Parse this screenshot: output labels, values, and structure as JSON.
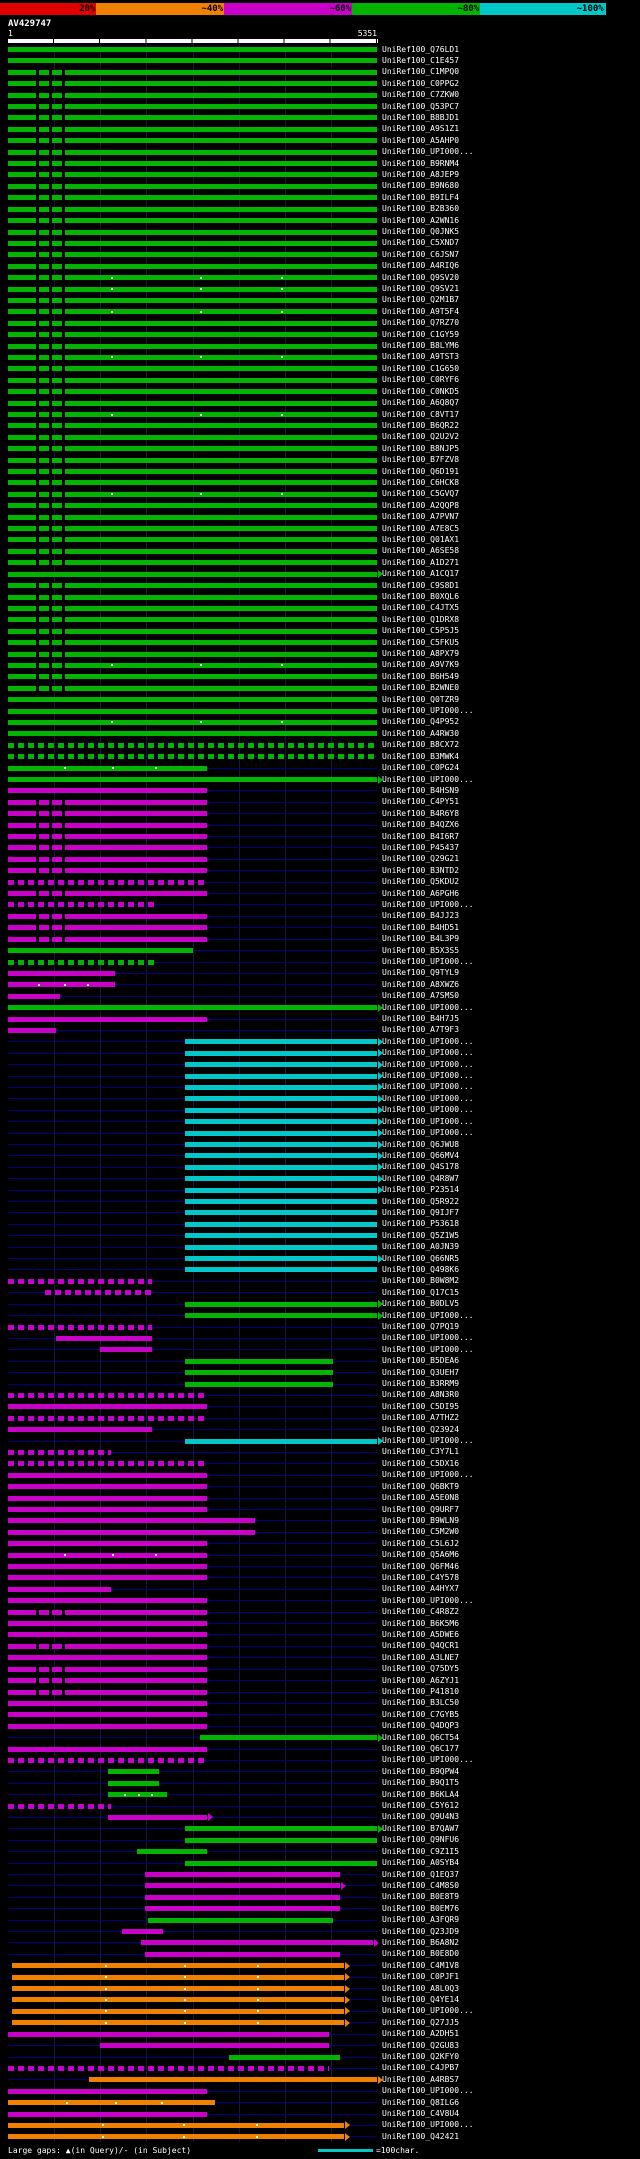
{
  "legend": {
    "gaps_text": "Large gaps: ▲(in Query)/- (in Subject)",
    "scale_marker_text": "=100char.",
    "scale_marker_color": "#00c8c8"
  },
  "chart_data": {
    "type": "bar",
    "orientation": "horizontal",
    "description": "BLAST-style alignment overview: each horizontal bar is one subject hit aligned to the query, colored by percent identity",
    "query_id": "AV429747",
    "x_range": [
      1,
      5351
    ],
    "ruler_start": "1",
    "ruler_end": "5351",
    "grid_divisions": 8,
    "scale": [
      {
        "label": "20%",
        "color": "#e00000"
      },
      {
        "label": "~40%",
        "color": "#f08000"
      },
      {
        "label": "~60%",
        "color": "#c800c8"
      },
      {
        "label": "~80%",
        "color": "#00b400"
      },
      {
        "label": "~100%",
        "color": "#00c8c8"
      }
    ],
    "colors": {
      "g": "#00b400",
      "m": "#c800c8",
      "c": "#00c8c8",
      "o": "#f08000",
      "r": "#e00000",
      "baseline": "#000082"
    },
    "row_format": "[hit_label, color_key, start_pct_of_query, end_pct_of_query, flags(a=arrow,d=dashed,t=white_gap_dots,x=black_gap_notches)]",
    "rows": [
      [
        "UniRef100_Q76LD1",
        "g",
        0,
        100,
        ""
      ],
      [
        "UniRef100_C1E457",
        "g",
        0,
        100,
        ""
      ],
      [
        "UniRef100_C1MPQ0",
        "g",
        0,
        100,
        "x"
      ],
      [
        "UniRef100_C0PPG2",
        "g",
        0,
        100,
        "x"
      ],
      [
        "UniRef100_C7ZKW0",
        "g",
        0,
        100,
        "x"
      ],
      [
        "UniRef100_Q53PC7",
        "g",
        0,
        100,
        "x"
      ],
      [
        "UniRef100_B8BJD1",
        "g",
        0,
        100,
        "x"
      ],
      [
        "UniRef100_A9S1Z1",
        "g",
        0,
        100,
        "x"
      ],
      [
        "UniRef100_A5AHP0",
        "g",
        0,
        100,
        "x"
      ],
      [
        "UniRef100_UPI000...",
        "g",
        0,
        100,
        "x"
      ],
      [
        "UniRef100_B9RNM4",
        "g",
        0,
        100,
        "x"
      ],
      [
        "UniRef100_A8JEP9",
        "g",
        0,
        100,
        "x"
      ],
      [
        "UniRef100_B9N680",
        "g",
        0,
        100,
        "x"
      ],
      [
        "UniRef100_B9ILF4",
        "g",
        0,
        100,
        "x"
      ],
      [
        "UniRef100_B2B360",
        "g",
        0,
        100,
        "x"
      ],
      [
        "UniRef100_A2WN16",
        "g",
        0,
        100,
        "x"
      ],
      [
        "UniRef100_Q0JNK5",
        "g",
        0,
        100,
        "x"
      ],
      [
        "UniRef100_C5XND7",
        "g",
        0,
        100,
        "x"
      ],
      [
        "UniRef100_C6JSN7",
        "g",
        0,
        100,
        "x"
      ],
      [
        "UniRef100_A4RIQ6",
        "g",
        0,
        100,
        "x"
      ],
      [
        "UniRef100_Q9SV20",
        "g",
        0,
        100,
        "xt"
      ],
      [
        "UniRef100_Q9SV21",
        "g",
        0,
        100,
        "xt"
      ],
      [
        "UniRef100_Q2M1B7",
        "g",
        0,
        100,
        "x"
      ],
      [
        "UniRef100_A9T5F4",
        "g",
        0,
        100,
        "xt"
      ],
      [
        "UniRef100_Q7RZ70",
        "g",
        0,
        100,
        "x"
      ],
      [
        "UniRef100_C1GY59",
        "g",
        0,
        100,
        "x"
      ],
      [
        "UniRef100_B8LYM6",
        "g",
        0,
        100,
        "x"
      ],
      [
        "UniRef100_A9TST3",
        "g",
        0,
        100,
        "xt"
      ],
      [
        "UniRef100_C1G650",
        "g",
        0,
        100,
        "x"
      ],
      [
        "UniRef100_C0RYF6",
        "g",
        0,
        100,
        "x"
      ],
      [
        "UniRef100_C0NKD5",
        "g",
        0,
        100,
        "x"
      ],
      [
        "UniRef100_A6Q8Q7",
        "g",
        0,
        100,
        "x"
      ],
      [
        "UniRef100_C8VT17",
        "g",
        0,
        100,
        "xt"
      ],
      [
        "UniRef100_B6QR22",
        "g",
        0,
        100,
        "x"
      ],
      [
        "UniRef100_Q2U2V2",
        "g",
        0,
        100,
        "x"
      ],
      [
        "UniRef100_B8NJP5",
        "g",
        0,
        100,
        "x"
      ],
      [
        "UniRef100_B7FZV8",
        "g",
        0,
        100,
        "x"
      ],
      [
        "UniRef100_Q6D191",
        "g",
        0,
        100,
        "x"
      ],
      [
        "UniRef100_C6HCK8",
        "g",
        0,
        100,
        "x"
      ],
      [
        "UniRef100_C5GVQ7",
        "g",
        0,
        100,
        "xt"
      ],
      [
        "UniRef100_A2QQP8",
        "g",
        0,
        100,
        "x"
      ],
      [
        "UniRef100_A7PVN7",
        "g",
        0,
        100,
        "x"
      ],
      [
        "UniRef100_A7E8C5",
        "g",
        0,
        100,
        "x"
      ],
      [
        "UniRef100_Q01AX1",
        "g",
        0,
        100,
        "x"
      ],
      [
        "UniRef100_A6SE58",
        "g",
        0,
        100,
        "x"
      ],
      [
        "UniRef100_A1D271",
        "g",
        0,
        100,
        "x"
      ],
      [
        "UniRef100_A1CQ17",
        "g",
        0,
        100,
        "a"
      ],
      [
        "UniRef100_C9S8D1",
        "g",
        0,
        100,
        "x"
      ],
      [
        "UniRef100_B0XQL6",
        "g",
        0,
        100,
        "x"
      ],
      [
        "UniRef100_C4JTX5",
        "g",
        0,
        100,
        "x"
      ],
      [
        "UniRef100_Q1DRX8",
        "g",
        0,
        100,
        "x"
      ],
      [
        "UniRef100_C5P5J5",
        "g",
        0,
        100,
        "x"
      ],
      [
        "UniRef100_C5FKU5",
        "g",
        0,
        100,
        "x"
      ],
      [
        "UniRef100_A8PX79",
        "g",
        0,
        100,
        "x"
      ],
      [
        "UniRef100_A9V7K9",
        "g",
        0,
        100,
        "xt"
      ],
      [
        "UniRef100_B6H549",
        "g",
        0,
        100,
        "x"
      ],
      [
        "UniRef100_B2WNE0",
        "g",
        0,
        100,
        "x"
      ],
      [
        "UniRef100_Q0TZR9",
        "g",
        0,
        100,
        ""
      ],
      [
        "UniRef100_UPI000...",
        "g",
        0,
        100,
        ""
      ],
      [
        "UniRef100_Q4P952",
        "g",
        0,
        100,
        "t"
      ],
      [
        "UniRef100_A4RW30",
        "g",
        0,
        100,
        ""
      ],
      [
        "UniRef100_B8CX72",
        "g",
        0,
        100,
        "d"
      ],
      [
        "UniRef100_B3MWK4",
        "g",
        0,
        100,
        "d"
      ],
      [
        "UniRef100_C0PG24",
        "g",
        0,
        54,
        "t"
      ],
      [
        "UniRef100_UPI000...",
        "g",
        0,
        100,
        "a"
      ],
      [
        "UniRef100_B4HSN9",
        "m",
        0,
        54,
        ""
      ],
      [
        "UniRef100_C4PY51",
        "m",
        0,
        54,
        "x"
      ],
      [
        "UniRef100_B4R6Y8",
        "m",
        0,
        54,
        "x"
      ],
      [
        "UniRef100_B4QZX6",
        "m",
        0,
        54,
        "x"
      ],
      [
        "UniRef100_B4I6R7",
        "m",
        0,
        54,
        "x"
      ],
      [
        "UniRef100_P45437",
        "m",
        0,
        54,
        "x"
      ],
      [
        "UniRef100_Q29G21",
        "m",
        0,
        54,
        "x"
      ],
      [
        "UniRef100_B3NTD2",
        "m",
        0,
        54,
        "x"
      ],
      [
        "UniRef100_Q5KDU2",
        "m",
        0,
        54,
        "d"
      ],
      [
        "UniRef100_A6PGH6",
        "m",
        0,
        54,
        "x"
      ],
      [
        "UniRef100_UPI000...",
        "m",
        0,
        40,
        "d"
      ],
      [
        "UniRef100_B4JJ23",
        "m",
        0,
        54,
        "x"
      ],
      [
        "UniRef100_B4HD51",
        "m",
        0,
        54,
        "x"
      ],
      [
        "UniRef100_B4L3P9",
        "m",
        0,
        54,
        "x"
      ],
      [
        "UniRef100_B5X3S5",
        "g",
        0,
        50,
        ""
      ],
      [
        "UniRef100_UPI000...",
        "g",
        0,
        40,
        "d"
      ],
      [
        "UniRef100_Q9TYL9",
        "m",
        0,
        29,
        ""
      ],
      [
        "UniRef100_A8XWZ6",
        "m",
        0,
        29,
        "t"
      ],
      [
        "UniRef100_A7SMS0",
        "m",
        0,
        14,
        ""
      ],
      [
        "UniRef100_UPI000...",
        "g",
        0,
        100,
        "a"
      ],
      [
        "UniRef100_B4H7J5",
        "m",
        0,
        54,
        ""
      ],
      [
        "UniRef100_A7T9F3",
        "m",
        0,
        13,
        ""
      ],
      [
        "UniRef100_UPI000...",
        "c",
        48,
        100,
        "a"
      ],
      [
        "UniRef100_UPI000...",
        "c",
        48,
        100,
        "a"
      ],
      [
        "UniRef100_UPI000...",
        "c",
        48,
        100,
        "a"
      ],
      [
        "UniRef100_UPI000...",
        "c",
        48,
        100,
        "a"
      ],
      [
        "UniRef100_UPI000...",
        "c",
        48,
        100,
        "a"
      ],
      [
        "UniRef100_UPI000...",
        "c",
        48,
        100,
        "a"
      ],
      [
        "UniRef100_UPI000...",
        "c",
        48,
        100,
        "a"
      ],
      [
        "UniRef100_UPI000...",
        "c",
        48,
        100,
        "a"
      ],
      [
        "UniRef100_UPI000...",
        "c",
        48,
        100,
        "a"
      ],
      [
        "UniRef100_Q6JWU8",
        "c",
        48,
        100,
        "a"
      ],
      [
        "UniRef100_Q66MV4",
        "c",
        48,
        100,
        "a"
      ],
      [
        "UniRef100_Q4S178",
        "c",
        48,
        100,
        "a"
      ],
      [
        "UniRef100_Q4R8W7",
        "c",
        48,
        100,
        "a"
      ],
      [
        "UniRef100_P23514",
        "c",
        48,
        100,
        "a"
      ],
      [
        "UniRef100_Q5R922",
        "c",
        48,
        100,
        ""
      ],
      [
        "UniRef100_Q9IJF7",
        "c",
        48,
        100,
        ""
      ],
      [
        "UniRef100_P53618",
        "c",
        48,
        100,
        ""
      ],
      [
        "UniRef100_Q5Z1W5",
        "c",
        48,
        100,
        ""
      ],
      [
        "UniRef100_A0JN39",
        "c",
        48,
        100,
        ""
      ],
      [
        "UniRef100_Q66NR5",
        "c",
        48,
        100,
        "a"
      ],
      [
        "UniRef100_Q498K6",
        "c",
        48,
        100,
        ""
      ],
      [
        "UniRef100_B0W8M2",
        "m",
        0,
        39,
        "d"
      ],
      [
        "UniRef100_Q17C15",
        "m",
        10,
        39,
        "d"
      ],
      [
        "UniRef100_B0DLV5",
        "g",
        48,
        100,
        "a"
      ],
      [
        "UniRef100_UPI000...",
        "g",
        48,
        100,
        "a"
      ],
      [
        "UniRef100_Q7PQ19",
        "m",
        0,
        39,
        "d"
      ],
      [
        "UniRef100_UPI000...",
        "m",
        13,
        39,
        ""
      ],
      [
        "UniRef100_UPI000...",
        "m",
        25,
        39,
        ""
      ],
      [
        "UniRef100_B5DEA6",
        "g",
        48,
        88,
        ""
      ],
      [
        "UniRef100_Q3UEH7",
        "g",
        48,
        88,
        ""
      ],
      [
        "UniRef100_B3RRM9",
        "g",
        48,
        88,
        ""
      ],
      [
        "UniRef100_A8N3R0",
        "m",
        0,
        54,
        "d"
      ],
      [
        "UniRef100_C5DI95",
        "m",
        0,
        54,
        ""
      ],
      [
        "UniRef100_A7THZ2",
        "m",
        0,
        54,
        "d"
      ],
      [
        "UniRef100_Q23924",
        "m",
        0,
        39,
        ""
      ],
      [
        "UniRef100_UPI000...",
        "c",
        48,
        100,
        "a"
      ],
      [
        "UniRef100_C3Y7L1",
        "m",
        0,
        28,
        "d"
      ],
      [
        "UniRef100_C5DX16",
        "m",
        0,
        54,
        "d"
      ],
      [
        "UniRef100_UPI000...",
        "m",
        0,
        54,
        ""
      ],
      [
        "UniRef100_Q6BKT9",
        "m",
        0,
        54,
        ""
      ],
      [
        "UniRef100_A5E0N8",
        "m",
        0,
        54,
        ""
      ],
      [
        "UniRef100_Q9URF7",
        "m",
        0,
        54,
        ""
      ],
      [
        "UniRef100_B9WLN9",
        "m",
        0,
        67,
        ""
      ],
      [
        "UniRef100_C5M2W0",
        "m",
        0,
        67,
        ""
      ],
      [
        "UniRef100_C5L6J2",
        "m",
        0,
        54,
        ""
      ],
      [
        "UniRef100_Q5A6M6",
        "m",
        0,
        54,
        "t"
      ],
      [
        "UniRef100_Q6FM46",
        "m",
        0,
        54,
        ""
      ],
      [
        "UniRef100_C4Y578",
        "m",
        0,
        54,
        ""
      ],
      [
        "UniRef100_A4HYX7",
        "m",
        0,
        28,
        ""
      ],
      [
        "UniRef100_UPI000...",
        "m",
        0,
        54,
        ""
      ],
      [
        "UniRef100_C4R8Z2",
        "m",
        0,
        54,
        "x"
      ],
      [
        "UniRef100_B6K5M6",
        "m",
        0,
        54,
        ""
      ],
      [
        "UniRef100_A5DWE6",
        "m",
        0,
        54,
        ""
      ],
      [
        "UniRef100_Q4QCR1",
        "m",
        0,
        54,
        "x"
      ],
      [
        "UniRef100_A3LNE7",
        "m",
        0,
        54,
        ""
      ],
      [
        "UniRef100_Q75DY5",
        "m",
        0,
        54,
        "x"
      ],
      [
        "UniRef100_A6ZYJ1",
        "m",
        0,
        54,
        "x"
      ],
      [
        "UniRef100_P41810",
        "m",
        0,
        54,
        "x"
      ],
      [
        "UniRef100_B3LC50",
        "m",
        0,
        54,
        ""
      ],
      [
        "UniRef100_C7GYB5",
        "m",
        0,
        54,
        ""
      ],
      [
        "UniRef100_Q4DQP3",
        "m",
        0,
        54,
        ""
      ],
      [
        "UniRef100_Q6CT54",
        "g",
        52,
        100,
        "a"
      ],
      [
        "UniRef100_Q6C177",
        "m",
        0,
        54,
        ""
      ],
      [
        "UniRef100_UPI000...",
        "m",
        0,
        54,
        "d"
      ],
      [
        "UniRef100_B9QPW4",
        "g",
        27,
        41,
        ""
      ],
      [
        "UniRef100_B9Q1T5",
        "g",
        27,
        41,
        ""
      ],
      [
        "UniRef100_B6KLA4",
        "g",
        27,
        43,
        "t"
      ],
      [
        "UniRef100_C5Y612",
        "m",
        0,
        28,
        "d"
      ],
      [
        "UniRef100_Q9U4N3",
        "m",
        27,
        54,
        "a"
      ],
      [
        "UniRef100_B7QAW7",
        "g",
        48,
        100,
        "a"
      ],
      [
        "UniRef100_Q9NFU6",
        "g",
        48,
        100,
        ""
      ],
      [
        "UniRef100_C9Z1I5",
        "g",
        35,
        54,
        ""
      ],
      [
        "UniRef100_A0SYB4",
        "g",
        48,
        100,
        ""
      ],
      [
        "UniRef100_Q1EQ37",
        "m",
        37,
        90,
        ""
      ],
      [
        "UniRef100_C4M8S0",
        "m",
        37,
        90,
        "a"
      ],
      [
        "UniRef100_B0E8T9",
        "m",
        37,
        90,
        ""
      ],
      [
        "UniRef100_B0EM76",
        "m",
        37,
        90,
        ""
      ],
      [
        "UniRef100_A3FQR9",
        "g",
        38,
        88,
        ""
      ],
      [
        "UniRef100_Q23JD9",
        "m",
        31,
        42,
        ""
      ],
      [
        "UniRef100_B6A8N2",
        "m",
        36,
        99,
        "a"
      ],
      [
        "UniRef100_B0E8D0",
        "m",
        37,
        90,
        ""
      ],
      [
        "UniRef100_C4M1V8",
        "o",
        1,
        91,
        "at"
      ],
      [
        "UniRef100_C0PJF1",
        "o",
        1,
        91,
        "at"
      ],
      [
        "UniRef100_A8L0Q3",
        "o",
        1,
        91,
        "at"
      ],
      [
        "UniRef100_Q4YE14",
        "o",
        1,
        91,
        "at"
      ],
      [
        "UniRef100_UPI000...",
        "o",
        1,
        91,
        "at"
      ],
      [
        "UniRef100_Q27JJ5",
        "o",
        1,
        91,
        "at"
      ],
      [
        "UniRef100_A2DH51",
        "m",
        0,
        87,
        ""
      ],
      [
        "UniRef100_Q2GU83",
        "m",
        25,
        87,
        ""
      ],
      [
        "UniRef100_Q2KFY0",
        "g",
        60,
        90,
        ""
      ],
      [
        "UniRef100_C4JPB7",
        "m",
        0,
        87,
        "d"
      ],
      [
        "UniRef100_A4RBS7",
        "o",
        22,
        100,
        "a"
      ],
      [
        "UniRef100_UPI000...",
        "m",
        0,
        54,
        ""
      ],
      [
        "UniRef100_Q8ILG6",
        "o",
        0,
        56,
        "t"
      ],
      [
        "UniRef100_C4V8U4",
        "m",
        0,
        54,
        ""
      ],
      [
        "UniRef100_UPI000...",
        "o",
        0,
        91,
        "at"
      ],
      [
        "UniRef100_Q42421",
        "o",
        0,
        91,
        "at"
      ]
    ]
  }
}
